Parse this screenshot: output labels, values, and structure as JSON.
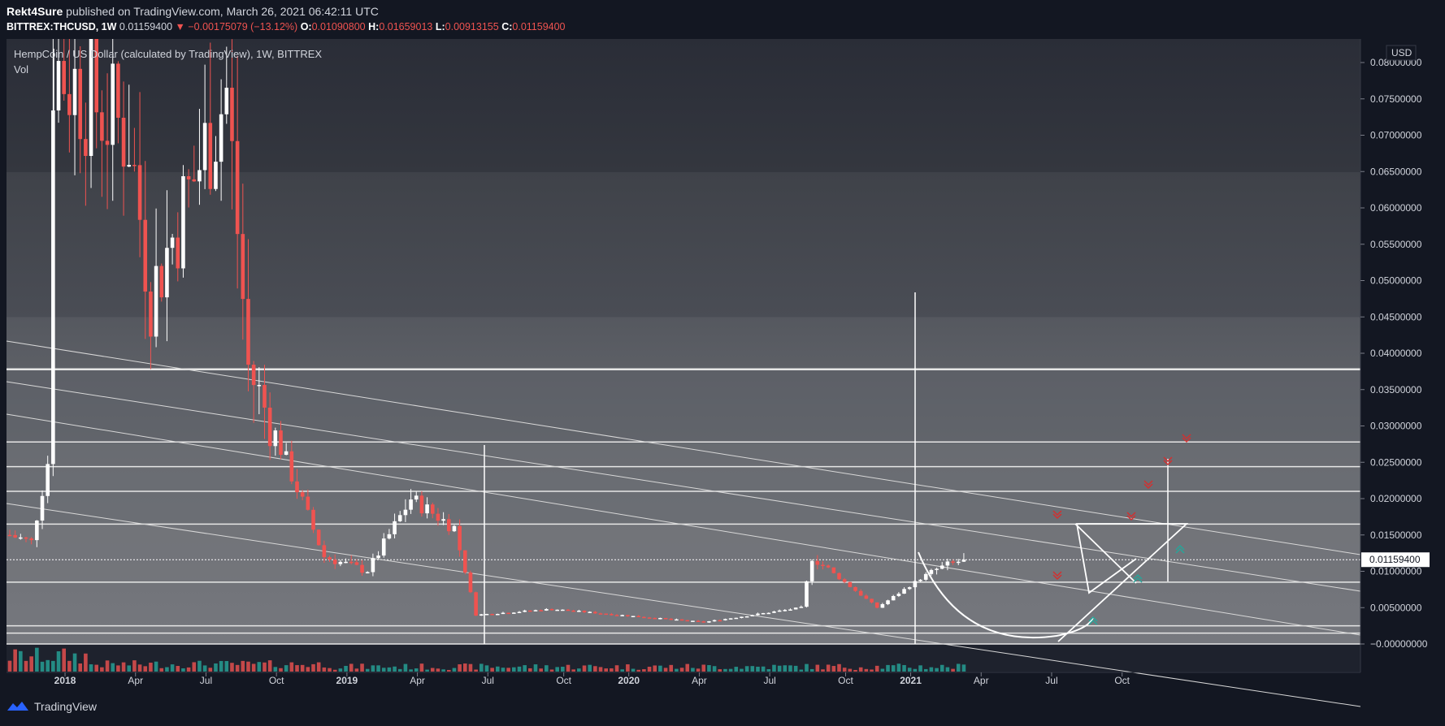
{
  "header": {
    "author": "Rekt4Sure",
    "published_text": "published on TradingView.com, March 26, 2021 06:42:11 UTC",
    "symbol_label": "BITTREX:THCUSD, 1W",
    "last_price": "0.01159400",
    "change_text": "▼ −0.00175079 (−13.12%)",
    "o_label": "O:",
    "o_value": "0.01090800",
    "h_label": "H:",
    "h_value": "0.01659013",
    "l_label": "L:",
    "l_value": "0.00913155",
    "c_label": "C:",
    "c_value": "0.01159400"
  },
  "legend": {
    "title": "HempCoin / US Dollar (calculated by TradingView), 1W, BITTREX",
    "volume_label": "Vol"
  },
  "price_axis": {
    "currency": "USD",
    "last_price_tag": "0.01159400",
    "tick_labels": [
      "0.08000000",
      "0.07500000",
      "0.07000000",
      "0.06500000",
      "0.06000000",
      "0.05500000",
      "0.05000000",
      "0.04500000",
      "0.04000000",
      "0.03500000",
      "0.03000000",
      "0.02500000",
      "0.02000000",
      "0.01500000",
      "0.01000000",
      "0.00500000",
      "−0.00000000"
    ]
  },
  "footer": {
    "brand": "TradingView"
  },
  "colors": {
    "up": "#ffffff",
    "down": "#ef5350",
    "vol_up": "#26a69a",
    "vol_down": "#ef5350",
    "bg": "#131722"
  },
  "chart_data": {
    "type": "candlestick",
    "title": "HempCoin / US Dollar (calculated by TradingView), 1W, BITTREX",
    "symbol": "BITTREX:THCUSD",
    "timeframe": "1W",
    "ylim": [
      -0.001,
      0.081
    ],
    "y_ticks": [
      0,
      0.005,
      0.01,
      0.015,
      0.02,
      0.025,
      0.03,
      0.035,
      0.04,
      0.045,
      0.05,
      0.055,
      0.06,
      0.065,
      0.07,
      0.075,
      0.08
    ],
    "x_ticks": [
      "2018",
      "Apr",
      "Jul",
      "Oct",
      "2019",
      "Apr",
      "Jul",
      "Oct",
      "2020",
      "Apr",
      "Jul",
      "Oct",
      "2021",
      "Apr",
      "Jul",
      "Oct"
    ],
    "x_tick_weeks": [
      9,
      22,
      35,
      48,
      61,
      74,
      87,
      101,
      113,
      126,
      139,
      153,
      165,
      178,
      191,
      204
    ],
    "last_close": 0.011594,
    "horizontal_levels": [
      0.0378,
      0.0278,
      0.0244,
      0.021,
      0.0165,
      0.0085,
      0.0025,
      0.0015,
      0.0
    ],
    "weekly_close_estimates": [
      {
        "week": 0,
        "close": 0.015
      },
      {
        "week": 4,
        "close": 0.014
      },
      {
        "week": 7,
        "close": 0.025
      },
      {
        "week": 8,
        "close": 0.08
      },
      {
        "week": 22,
        "close": 0.07
      },
      {
        "week": 26,
        "close": 0.048
      },
      {
        "week": 40,
        "close": 0.076
      },
      {
        "week": 44,
        "close": 0.038
      },
      {
        "week": 50,
        "close": 0.027
      },
      {
        "week": 58,
        "close": 0.012
      },
      {
        "week": 66,
        "close": 0.01
      },
      {
        "week": 74,
        "close": 0.02
      },
      {
        "week": 82,
        "close": 0.016
      },
      {
        "week": 86,
        "close": 0.004
      },
      {
        "week": 100,
        "close": 0.0048
      },
      {
        "week": 120,
        "close": 0.0035
      },
      {
        "week": 128,
        "close": 0.003
      },
      {
        "week": 146,
        "close": 0.005
      },
      {
        "week": 148,
        "close": 0.012
      },
      {
        "week": 160,
        "close": 0.005
      },
      {
        "week": 170,
        "close": 0.01
      },
      {
        "week": 176,
        "close": 0.0116
      }
    ]
  }
}
